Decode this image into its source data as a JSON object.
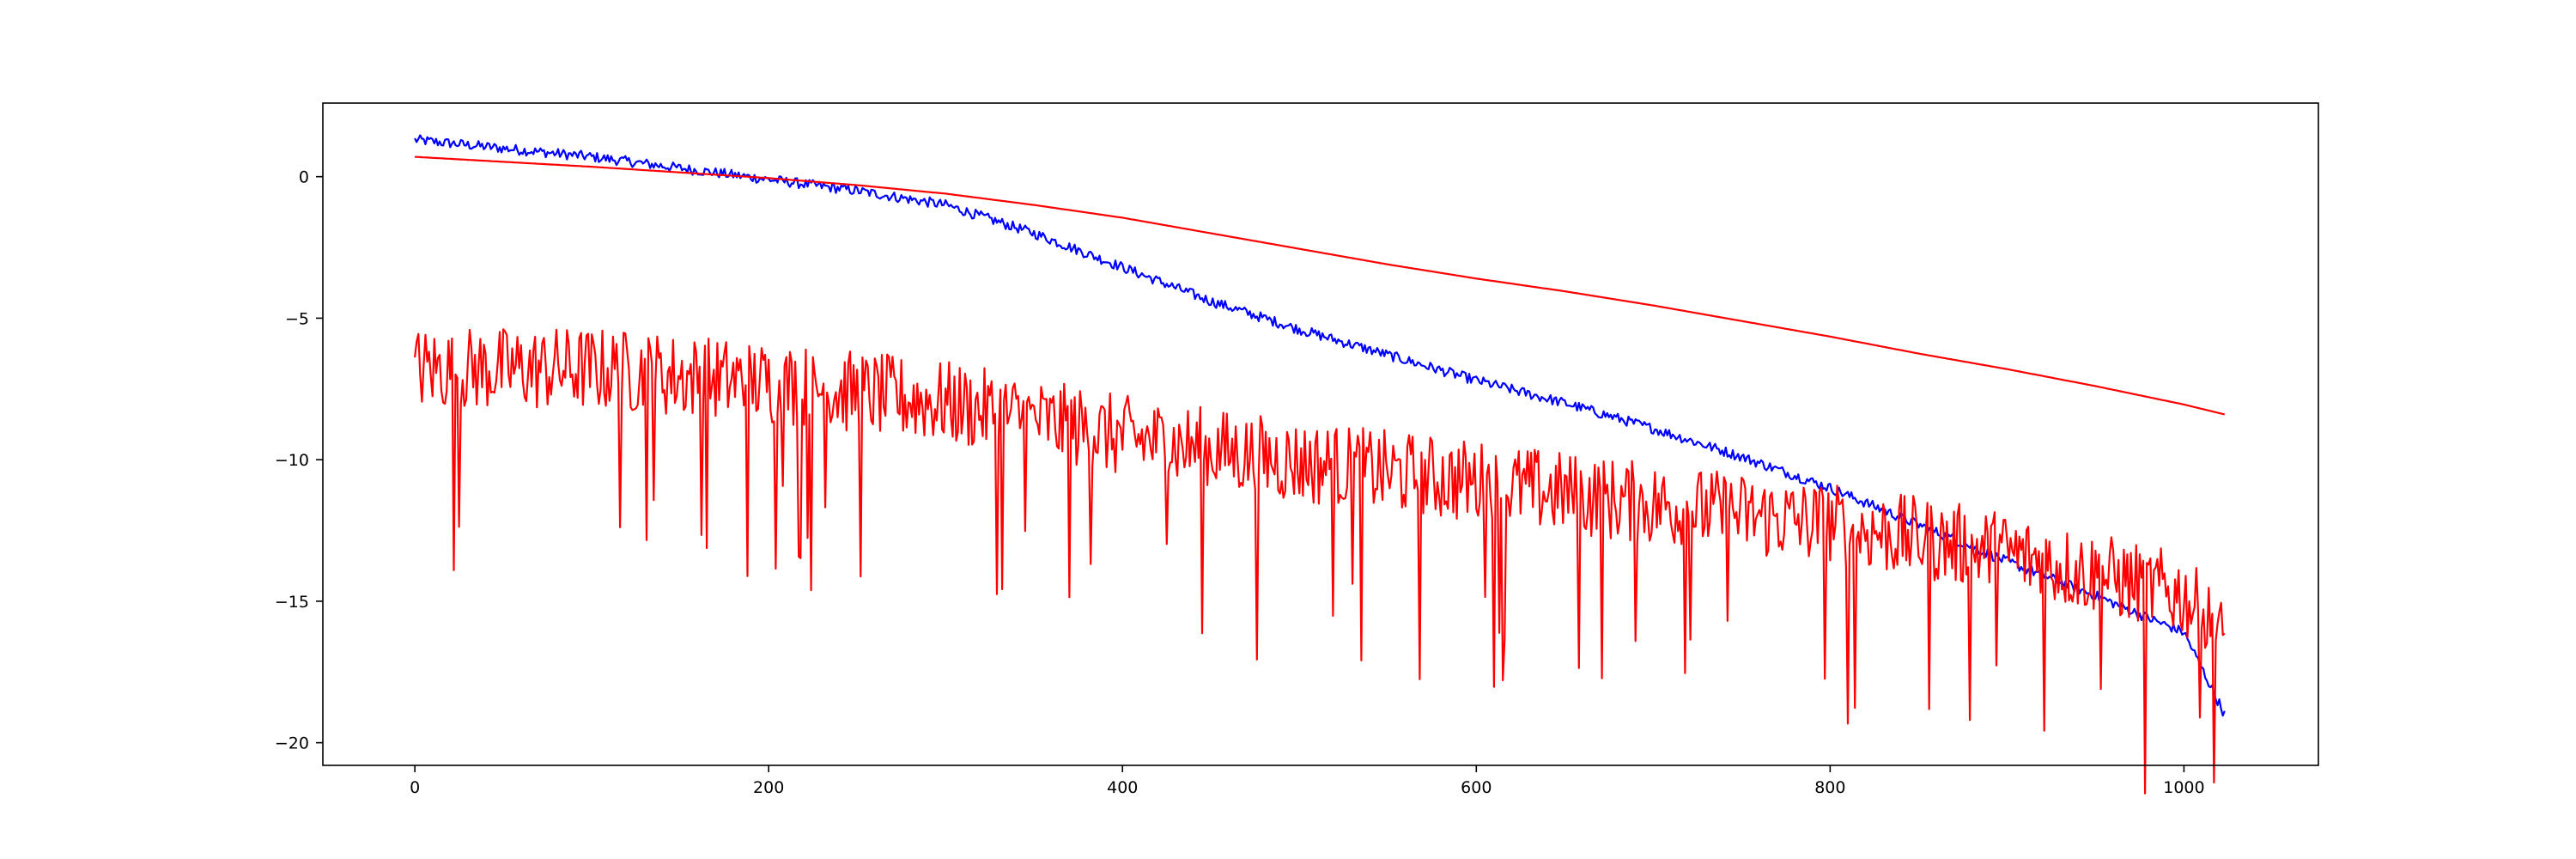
{
  "chart_data": {
    "type": "line",
    "title": "",
    "xlabel": "",
    "ylabel": "",
    "xlim": [
      -52,
      1076
    ],
    "ylim": [
      -20.8,
      2.6
    ],
    "xticks": [
      0,
      200,
      400,
      600,
      800,
      1000
    ],
    "xtick_labels": [
      "0",
      "200",
      "400",
      "600",
      "800",
      "1000"
    ],
    "yticks": [
      0,
      -5,
      -10,
      -15,
      -20
    ],
    "ytick_labels": [
      "0",
      "−5",
      "−10",
      "−15",
      "−20"
    ],
    "grid": false,
    "legend": "none",
    "series": [
      {
        "color": "#0000ff",
        "noise": 0.18,
        "x": [
          0,
          50,
          100,
          150,
          200,
          250,
          300,
          350,
          400,
          450,
          500,
          550,
          600,
          650,
          700,
          750,
          800,
          850,
          900,
          950,
          980,
          1000,
          1023
        ],
        "y": [
          1.3,
          1.0,
          0.7,
          0.3,
          -0.1,
          -0.5,
          -1.0,
          -2.0,
          -3.2,
          -4.4,
          -5.4,
          -6.3,
          -7.2,
          -8.0,
          -8.9,
          -9.9,
          -11.0,
          -12.3,
          -13.6,
          -14.8,
          -15.6,
          -16.1,
          -19.0
        ]
      },
      {
        "color": "#ff0000",
        "noise": 0.0,
        "x": [
          0,
          100,
          200,
          250,
          300,
          350,
          400,
          450,
          500,
          550,
          600,
          650,
          700,
          750,
          800,
          850,
          900,
          950,
          1000,
          1023
        ],
        "y": [
          0.7,
          0.35,
          -0.05,
          -0.3,
          -0.6,
          -1.0,
          -1.45,
          -2.0,
          -2.55,
          -3.1,
          -3.6,
          -4.05,
          -4.55,
          -5.1,
          -5.65,
          -6.25,
          -6.8,
          -7.4,
          -8.05,
          -8.4
        ]
      },
      {
        "color": "#ff0000",
        "noise": 1.5,
        "x": [
          0,
          100,
          200,
          300,
          400,
          500,
          600,
          700,
          800,
          900,
          1000,
          1023
        ],
        "y": [
          -6.8,
          -6.8,
          -7.3,
          -8.0,
          -9.2,
          -10.1,
          -10.8,
          -11.6,
          -12.3,
          -13.3,
          -14.8,
          -16.5
        ]
      }
    ]
  }
}
